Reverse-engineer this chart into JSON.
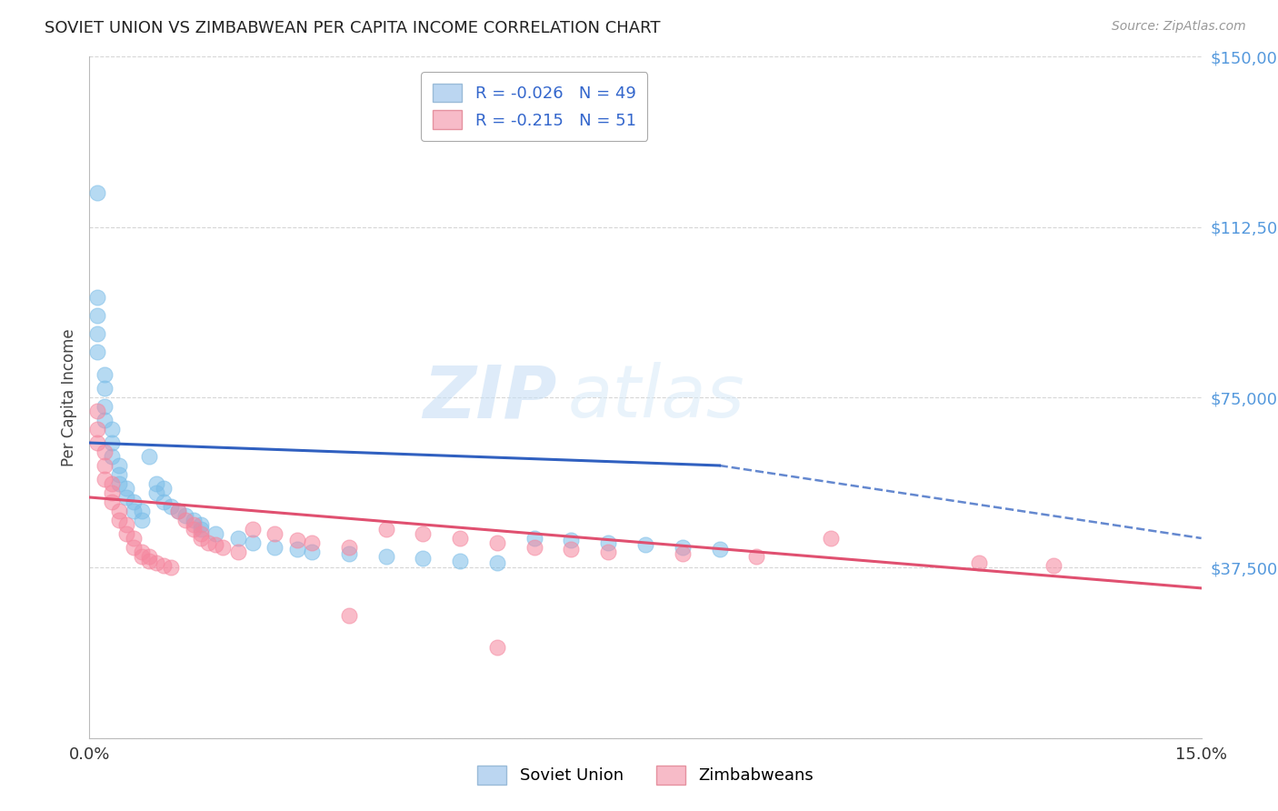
{
  "title": "SOVIET UNION VS ZIMBABWEAN PER CAPITA INCOME CORRELATION CHART",
  "source": "Source: ZipAtlas.com",
  "ylabel": "Per Capita Income",
  "xlim": [
    0.0,
    0.15
  ],
  "ylim": [
    0,
    150000
  ],
  "yticks": [
    0,
    37500,
    75000,
    112500,
    150000
  ],
  "ytick_labels": [
    "",
    "$37,500",
    "$75,000",
    "$112,500",
    "$150,000"
  ],
  "xticks": [
    0.0,
    0.05,
    0.1,
    0.15
  ],
  "xtick_labels": [
    "0.0%",
    "",
    "",
    "15.0%"
  ],
  "legend_labels": [
    "Soviet Union",
    "Zimbabweans"
  ],
  "blue_color": "#7bbde8",
  "pink_color": "#f5869e",
  "blue_line_color": "#3060c0",
  "pink_line_color": "#e05070",
  "R_blue": -0.026,
  "N_blue": 49,
  "R_pink": -0.215,
  "N_pink": 51,
  "watermark_zip": "ZIP",
  "watermark_atlas": "atlas",
  "background_color": "#ffffff",
  "grid_color": "#cccccc",
  "blue_scatter_x": [
    0.001,
    0.001,
    0.001,
    0.001,
    0.001,
    0.002,
    0.002,
    0.002,
    0.002,
    0.003,
    0.003,
    0.003,
    0.004,
    0.004,
    0.004,
    0.005,
    0.005,
    0.006,
    0.006,
    0.007,
    0.007,
    0.008,
    0.009,
    0.009,
    0.01,
    0.01,
    0.011,
    0.012,
    0.013,
    0.014,
    0.015,
    0.015,
    0.017,
    0.02,
    0.022,
    0.025,
    0.028,
    0.03,
    0.035,
    0.04,
    0.045,
    0.05,
    0.055,
    0.06,
    0.065,
    0.07,
    0.075,
    0.08,
    0.085
  ],
  "blue_scatter_y": [
    120000,
    97000,
    93000,
    89000,
    85000,
    80000,
    77000,
    73000,
    70000,
    68000,
    65000,
    62000,
    60000,
    58000,
    56000,
    55000,
    53000,
    52000,
    50000,
    50000,
    48000,
    62000,
    56000,
    54000,
    55000,
    52000,
    51000,
    50000,
    49000,
    48000,
    47000,
    46000,
    45000,
    44000,
    43000,
    42000,
    41500,
    41000,
    40500,
    40000,
    39500,
    39000,
    38500,
    44000,
    43500,
    43000,
    42500,
    42000,
    41500
  ],
  "pink_scatter_x": [
    0.001,
    0.001,
    0.001,
    0.002,
    0.002,
    0.002,
    0.003,
    0.003,
    0.003,
    0.004,
    0.004,
    0.005,
    0.005,
    0.006,
    0.006,
    0.007,
    0.007,
    0.008,
    0.008,
    0.009,
    0.01,
    0.011,
    0.012,
    0.013,
    0.014,
    0.014,
    0.015,
    0.015,
    0.016,
    0.017,
    0.018,
    0.02,
    0.022,
    0.025,
    0.028,
    0.03,
    0.035,
    0.04,
    0.045,
    0.05,
    0.055,
    0.06,
    0.065,
    0.07,
    0.08,
    0.09,
    0.1,
    0.12,
    0.13,
    0.055,
    0.035
  ],
  "pink_scatter_y": [
    72000,
    68000,
    65000,
    63000,
    60000,
    57000,
    56000,
    54000,
    52000,
    50000,
    48000,
    47000,
    45000,
    44000,
    42000,
    41000,
    40000,
    40000,
    39000,
    38500,
    38000,
    37500,
    50000,
    48000,
    47000,
    46000,
    45000,
    44000,
    43000,
    42500,
    42000,
    41000,
    46000,
    45000,
    43500,
    43000,
    42000,
    46000,
    45000,
    44000,
    43000,
    42000,
    41500,
    41000,
    40500,
    40000,
    44000,
    38500,
    38000,
    20000,
    27000
  ],
  "blue_trend_x0": 0.0,
  "blue_trend_y0": 65000,
  "blue_trend_x1": 0.085,
  "blue_trend_y1": 60000,
  "blue_trend_x2": 0.15,
  "blue_trend_y2": 44000,
  "pink_trend_x0": 0.0,
  "pink_trend_y0": 53000,
  "pink_trend_x1": 0.15,
  "pink_trend_y1": 33000
}
